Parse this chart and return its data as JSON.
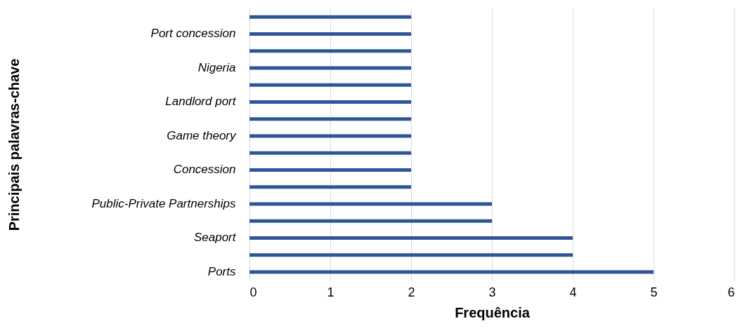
{
  "chart_data": {
    "type": "bar",
    "orientation": "horizontal",
    "xlabel": "Frequência",
    "ylabel": "Principais palavras-chave",
    "categories": [
      null,
      "Port concession",
      null,
      "Nigeria",
      null,
      "Landlord port",
      null,
      "Game theory",
      null,
      "Concession",
      null,
      "Public-Private Partnerships",
      null,
      "Seaport",
      null,
      "Ports"
    ],
    "values": [
      2,
      2,
      2,
      2,
      2,
      2,
      2,
      2,
      2,
      2,
      2,
      3,
      3,
      4,
      4,
      5
    ],
    "color": "#2f5597",
    "xlim": [
      0,
      6
    ],
    "xticks": [
      0,
      1,
      2,
      3,
      4,
      5,
      6
    ],
    "grid": "x"
  }
}
